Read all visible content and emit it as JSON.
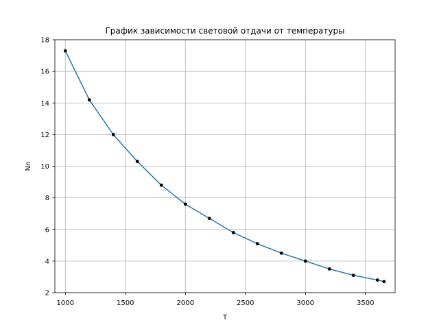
{
  "chart_data": {
    "type": "line",
    "title": "График зависимости световой отдачи от температуры",
    "xlabel": "T",
    "ylabel": "Nn",
    "xlim": [
      913,
      3747
    ],
    "ylim": [
      2,
      18
    ],
    "xticks": [
      1000,
      1500,
      2000,
      2500,
      3000,
      3500
    ],
    "yticks": [
      2,
      4,
      6,
      8,
      10,
      12,
      14,
      16,
      18
    ],
    "grid": true,
    "series": [
      {
        "line_color": "#1f77b4",
        "marker_color": "#000000",
        "x": [
          1000,
          1200,
          1400,
          1600,
          1800,
          2000,
          2200,
          2400,
          2600,
          2800,
          3000,
          3200,
          3400,
          3600,
          3655
        ],
        "y": [
          17.3,
          14.2,
          12.0,
          10.3,
          8.8,
          7.6,
          6.7,
          5.8,
          5.1,
          4.5,
          4.0,
          3.5,
          3.1,
          2.8,
          2.7
        ]
      }
    ]
  }
}
